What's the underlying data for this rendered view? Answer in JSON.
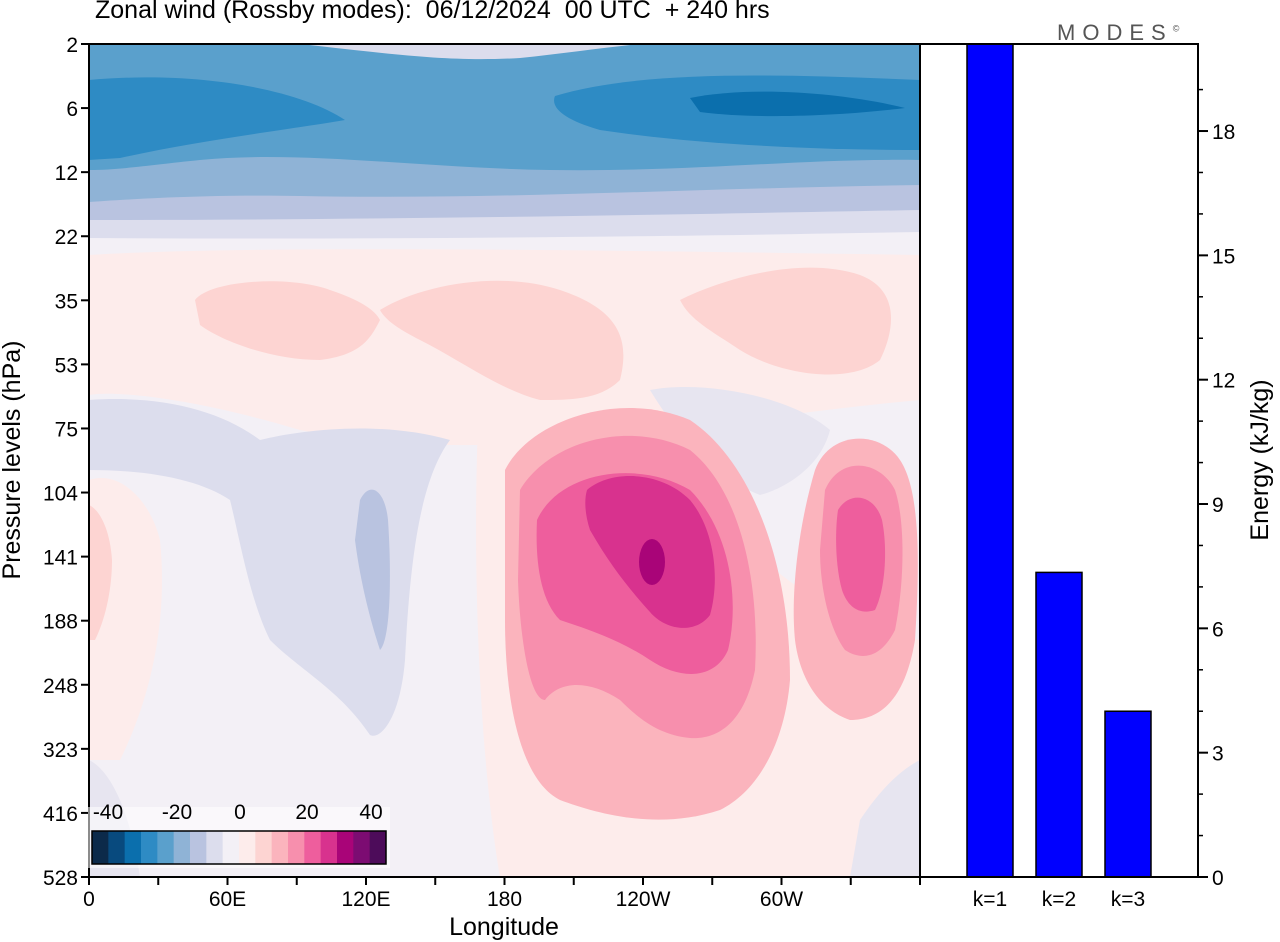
{
  "title": "Zonal wind (Rossby modes):  06/12/2024  00 UTC  + 240 hrs",
  "logo_text": "MODES",
  "logo_mark": "©",
  "chart_data": [
    {
      "type": "heatmap",
      "title": "Zonal wind (Rossby modes):  06/12/2024  00 UTC  + 240 hrs",
      "xlabel": "Longitude",
      "ylabel": "Pressure levels (hPa)",
      "x_ticks": [
        "0",
        "60E",
        "120E",
        "180",
        "120W",
        "60W"
      ],
      "x_range_deg": [
        0,
        360
      ],
      "y_ticks": [
        "2",
        "6",
        "12",
        "22",
        "35",
        "53",
        "75",
        "104",
        "141",
        "188",
        "248",
        "323",
        "416",
        "528"
      ],
      "y_range": [
        2,
        528
      ],
      "colorbar": {
        "tick_labels": [
          "-40",
          "-20",
          "0",
          "20",
          "40"
        ],
        "colors": [
          "#0c2a4a",
          "#084a7e",
          "#0b6fad",
          "#2e8bc4",
          "#5aa0cc",
          "#8fb3d6",
          "#b9c3e0",
          "#dcdded",
          "#f3f0f6",
          "#fdeceb",
          "#fdd4d2",
          "#fbb4bd",
          "#f78fad",
          "#ee5e9d",
          "#d8328e",
          "#a90478",
          "#7c0c72",
          "#4d0c5a"
        ]
      },
      "features": [
        {
          "name": "stratospheric easterlies",
          "lon_range": [
            0,
            360
          ],
          "pressure_range": [
            2,
            20
          ],
          "value": -25
        },
        {
          "name": "westerly jet core",
          "lon": 240,
          "pressure": 141,
          "value": 38
        },
        {
          "name": "secondary westerly core",
          "lon": 325,
          "pressure": 141,
          "value": 25
        }
      ]
    },
    {
      "type": "bar",
      "categories": [
        "k=1",
        "k=2",
        "k=3"
      ],
      "values": [
        20.1,
        7.35,
        4.0
      ],
      "ylabel": "Energy (kJ/kg)",
      "ylim": [
        0,
        20
      ],
      "y_ticks": [
        0,
        3,
        6,
        9,
        12,
        15,
        18
      ],
      "colors": {
        "bar": "#0000ff"
      }
    }
  ]
}
